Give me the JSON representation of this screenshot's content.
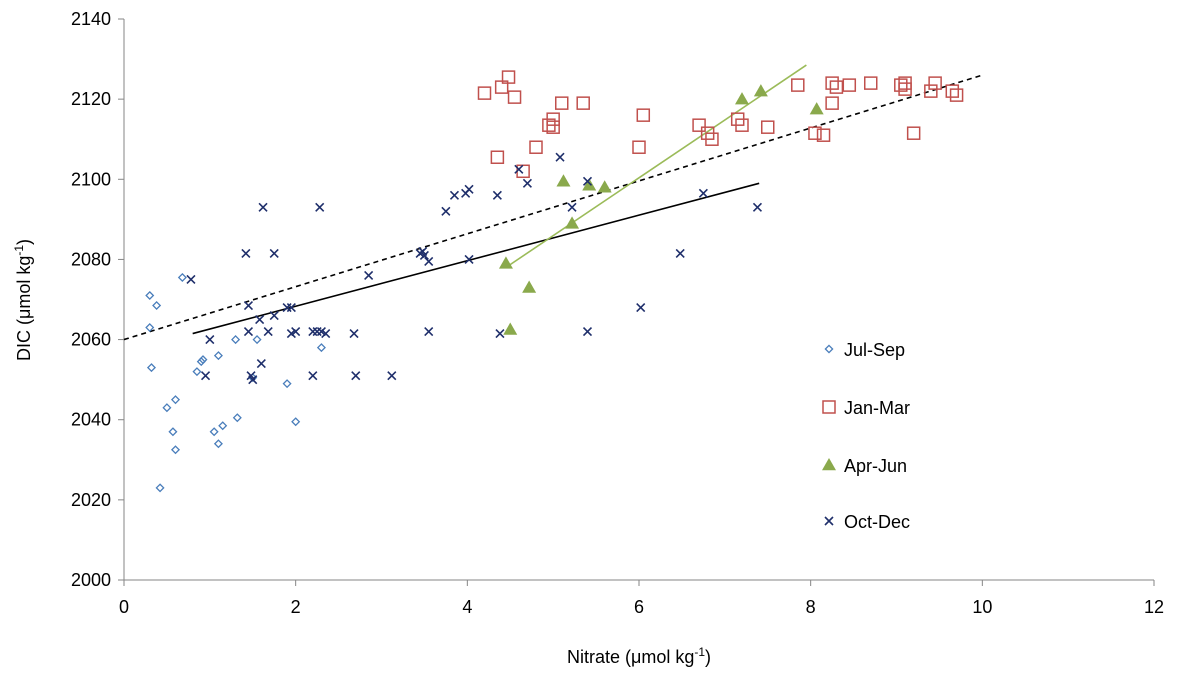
{
  "chart_data": {
    "type": "scatter",
    "title": "",
    "xlabel": "Nitrate (μmol kg",
    "xlabel_sup": "-1",
    "xlabel_end": ")",
    "ylabel": "DIC (μmol kg",
    "ylabel_sup": "-1",
    "ylabel_end": ")",
    "xlim": [
      0,
      12
    ],
    "ylim": [
      2000,
      2140
    ],
    "x_ticks": [
      0,
      2,
      4,
      6,
      8,
      10,
      12
    ],
    "y_ticks": [
      2000,
      2020,
      2040,
      2060,
      2080,
      2100,
      2120,
      2140
    ],
    "grid": false,
    "legend_position": "right-center",
    "series": [
      {
        "name": "Jul-Sep",
        "marker": "diamond-open",
        "color": "#4a7ebb",
        "points": [
          [
            0.3,
            2071
          ],
          [
            0.38,
            2068.5
          ],
          [
            0.3,
            2063
          ],
          [
            0.32,
            2053
          ],
          [
            0.68,
            2075.5
          ],
          [
            0.5,
            2043
          ],
          [
            0.6,
            2045
          ],
          [
            0.57,
            2037
          ],
          [
            0.6,
            2032.5
          ],
          [
            0.42,
            2023
          ],
          [
            0.85,
            2052
          ],
          [
            0.92,
            2055
          ],
          [
            0.9,
            2054.5
          ],
          [
            1.1,
            2056
          ],
          [
            1.05,
            2037
          ],
          [
            1.15,
            2038.5
          ],
          [
            1.1,
            2034
          ],
          [
            1.3,
            2060
          ],
          [
            1.32,
            2040.5
          ],
          [
            1.5,
            2050.5
          ],
          [
            1.55,
            2060
          ],
          [
            1.9,
            2049
          ],
          [
            2.0,
            2039.5
          ],
          [
            2.3,
            2058
          ]
        ]
      },
      {
        "name": "Jan-Mar",
        "marker": "square-open",
        "color": "#c0504d",
        "points": [
          [
            4.2,
            2121.5
          ],
          [
            4.4,
            2123
          ],
          [
            4.48,
            2125.5
          ],
          [
            4.55,
            2120.5
          ],
          [
            4.35,
            2105.5
          ],
          [
            4.65,
            2102
          ],
          [
            4.8,
            2108
          ],
          [
            4.95,
            2113.5
          ],
          [
            5.0,
            2115
          ],
          [
            5.0,
            2113
          ],
          [
            5.1,
            2119
          ],
          [
            5.35,
            2119
          ],
          [
            6.0,
            2108
          ],
          [
            6.05,
            2116
          ],
          [
            6.7,
            2113.5
          ],
          [
            6.8,
            2111.5
          ],
          [
            6.85,
            2110
          ],
          [
            7.15,
            2115
          ],
          [
            7.2,
            2113.5
          ],
          [
            7.5,
            2113
          ],
          [
            7.85,
            2123.5
          ],
          [
            8.05,
            2111.5
          ],
          [
            8.15,
            2111
          ],
          [
            8.25,
            2124
          ],
          [
            8.25,
            2119
          ],
          [
            8.3,
            2123
          ],
          [
            8.45,
            2123.5
          ],
          [
            8.7,
            2124
          ],
          [
            9.05,
            2123.5
          ],
          [
            9.1,
            2124
          ],
          [
            9.1,
            2122.5
          ],
          [
            9.2,
            2111.5
          ],
          [
            9.4,
            2122
          ],
          [
            9.45,
            2124
          ],
          [
            9.65,
            2122
          ],
          [
            9.7,
            2121
          ]
        ]
      },
      {
        "name": "Apr-Jun",
        "marker": "triangle-filled",
        "color": "#8aa94c",
        "points": [
          [
            4.45,
            2079
          ],
          [
            4.5,
            2062.5
          ],
          [
            4.72,
            2073
          ],
          [
            5.12,
            2099.5
          ],
          [
            5.22,
            2089
          ],
          [
            5.42,
            2098.5
          ],
          [
            5.6,
            2098
          ],
          [
            7.2,
            2120
          ],
          [
            7.42,
            2122
          ],
          [
            8.07,
            2117.5
          ]
        ]
      },
      {
        "name": "Oct-Dec",
        "marker": "x",
        "color": "#1f2f6b",
        "points": [
          [
            0.78,
            2075
          ],
          [
            0.95,
            2051
          ],
          [
            1.0,
            2060
          ],
          [
            1.42,
            2081.5
          ],
          [
            1.45,
            2068.5
          ],
          [
            1.45,
            2062
          ],
          [
            1.48,
            2051
          ],
          [
            1.5,
            2050
          ],
          [
            1.58,
            2065
          ],
          [
            1.62,
            2093
          ],
          [
            1.6,
            2054
          ],
          [
            1.68,
            2062
          ],
          [
            1.75,
            2081.5
          ],
          [
            1.75,
            2066
          ],
          [
            1.9,
            2068
          ],
          [
            1.95,
            2068
          ],
          [
            1.95,
            2061.5
          ],
          [
            2.0,
            2062
          ],
          [
            2.2,
            2051
          ],
          [
            2.2,
            2062
          ],
          [
            2.25,
            2062
          ],
          [
            2.28,
            2093
          ],
          [
            2.3,
            2062
          ],
          [
            2.35,
            2061.5
          ],
          [
            2.68,
            2061.5
          ],
          [
            2.7,
            2051
          ],
          [
            2.85,
            2076
          ],
          [
            3.12,
            2051
          ],
          [
            3.45,
            2081.5
          ],
          [
            3.48,
            2082
          ],
          [
            3.5,
            2081
          ],
          [
            3.55,
            2079.5
          ],
          [
            3.55,
            2062
          ],
          [
            3.75,
            2092
          ],
          [
            3.85,
            2096
          ],
          [
            3.98,
            2096.5
          ],
          [
            4.02,
            2097.5
          ],
          [
            4.02,
            2080
          ],
          [
            4.35,
            2096
          ],
          [
            4.38,
            2061.5
          ],
          [
            4.6,
            2102.5
          ],
          [
            4.7,
            2099
          ],
          [
            5.08,
            2105.5
          ],
          [
            5.22,
            2093
          ],
          [
            5.4,
            2099.5
          ],
          [
            5.4,
            2062
          ],
          [
            6.02,
            2068
          ],
          [
            6.48,
            2081.5
          ],
          [
            6.75,
            2096.5
          ],
          [
            7.38,
            2093
          ]
        ]
      }
    ],
    "trendlines": [
      {
        "style": "dashed",
        "color": "#000000",
        "x": [
          0,
          10
        ],
        "y": [
          2060,
          2126
        ]
      },
      {
        "style": "solid",
        "color": "#000000",
        "x": [
          0.8,
          7.4
        ],
        "y": [
          2061.5,
          2099
        ]
      },
      {
        "style": "solid",
        "color": "#9bbb59",
        "x": [
          4.45,
          7.95
        ],
        "y": [
          2078,
          2128.5
        ]
      }
    ]
  }
}
